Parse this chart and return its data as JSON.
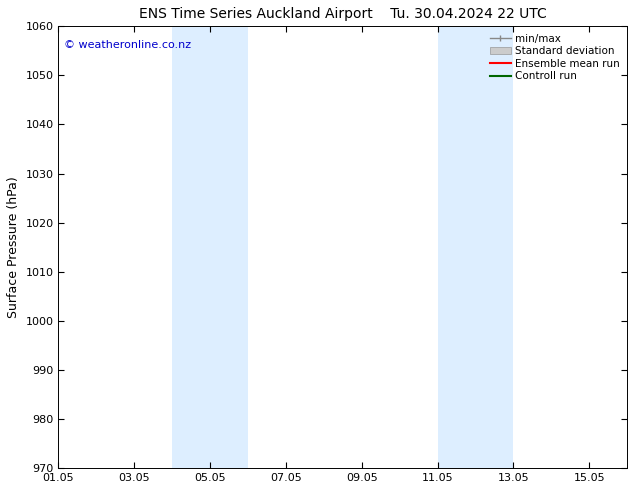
{
  "title": "ENS Time Series Auckland Airport",
  "title2": "Tu. 30.04.2024 22 UTC",
  "ylabel": "Surface Pressure (hPa)",
  "ylim": [
    970,
    1060
  ],
  "yticks": [
    970,
    980,
    990,
    1000,
    1010,
    1020,
    1030,
    1040,
    1050,
    1060
  ],
  "xlim": [
    0,
    15
  ],
  "xtick_labels": [
    "01.05",
    "03.05",
    "05.05",
    "07.05",
    "09.05",
    "11.05",
    "13.05",
    "15.05"
  ],
  "xtick_positions": [
    0,
    2,
    4,
    6,
    8,
    10,
    12,
    14
  ],
  "shaded_bands": [
    {
      "x_start": 3,
      "x_end": 5
    },
    {
      "x_start": 10,
      "x_end": 12
    }
  ],
  "shade_color": "#ddeeff",
  "background_color": "#ffffff",
  "copyright_text": "© weatheronline.co.nz",
  "copyright_color": "#0000cc",
  "legend_entries": [
    {
      "label": "min/max",
      "color": "#888888",
      "lw": 1.0,
      "type": "minmax"
    },
    {
      "label": "Standard deviation",
      "color": "#cccccc",
      "lw": 8,
      "type": "band"
    },
    {
      "label": "Ensemble mean run",
      "color": "#ff0000",
      "lw": 1.5,
      "type": "line"
    },
    {
      "label": "Controll run",
      "color": "#006600",
      "lw": 1.5,
      "type": "line"
    }
  ],
  "title_fontsize": 10,
  "axis_label_fontsize": 9,
  "tick_fontsize": 8,
  "copyright_fontsize": 8
}
